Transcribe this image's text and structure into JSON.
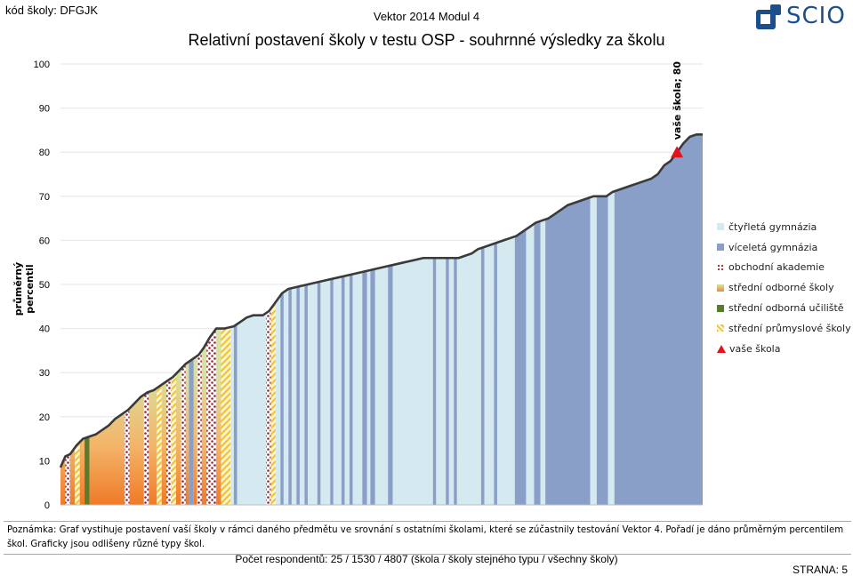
{
  "header": {
    "school_code": "kód školy: DFGJK",
    "module": "Vektor 2014 Modul 4",
    "title": "Relativní postavení školy v testu OSP - souhrnné výsledky za školu",
    "logo_text": "SCIO"
  },
  "chart_data": {
    "type": "area",
    "ylabel": "průměrný percentil",
    "ylim": [
      0,
      100
    ],
    "yticks": [
      0,
      10,
      20,
      30,
      40,
      50,
      60,
      70,
      80,
      90,
      100
    ],
    "legend_position": "right",
    "legend": [
      {
        "key": "ctyr",
        "label": "čtyřletá gymnázia",
        "color": "#d5eaf0"
      },
      {
        "key": "vice",
        "label": "víceletá gymnázia",
        "color": "#8a9fc8"
      },
      {
        "key": "obch",
        "label": "obchodní akademie",
        "color": "#a01d2a",
        "pattern": "dots"
      },
      {
        "key": "sos",
        "label": "střední odborné školy",
        "color": "#f08a3a",
        "gradient_top": "#d6e2a0"
      },
      {
        "key": "sou",
        "label": "střední odborná učiliště",
        "color": "#5a7a2e"
      },
      {
        "key": "prum",
        "label": "střední průmyslové školy",
        "color": "#f1c232",
        "pattern": "stripes"
      },
      {
        "key": "vase",
        "label": "vaše škola",
        "color": "#e0141e",
        "marker": "triangle"
      }
    ],
    "profile": [
      [
        0,
        8.5
      ],
      [
        3,
        11
      ],
      [
        6,
        11.5
      ],
      [
        10,
        13.5
      ],
      [
        14,
        15
      ],
      [
        18,
        15.5
      ],
      [
        22,
        16
      ],
      [
        26,
        17
      ],
      [
        30,
        18
      ],
      [
        34,
        19.5
      ],
      [
        38,
        20.5
      ],
      [
        42,
        21.5
      ],
      [
        46,
        23
      ],
      [
        50,
        24.5
      ],
      [
        54,
        25.5
      ],
      [
        58,
        26
      ],
      [
        62,
        27
      ],
      [
        66,
        28
      ],
      [
        70,
        29
      ],
      [
        74,
        30.5
      ],
      [
        78,
        32
      ],
      [
        82,
        33
      ],
      [
        86,
        34
      ],
      [
        89,
        35.5
      ],
      [
        93,
        38
      ],
      [
        97,
        40
      ],
      [
        102,
        40
      ],
      [
        108,
        40.5
      ],
      [
        112,
        41.5
      ],
      [
        116,
        42.5
      ],
      [
        120,
        43
      ],
      [
        126,
        43
      ],
      [
        130,
        44
      ],
      [
        134,
        46
      ],
      [
        138,
        48
      ],
      [
        142,
        49
      ],
      [
        148,
        49.5
      ],
      [
        154,
        50
      ],
      [
        160,
        50.5
      ],
      [
        166,
        51
      ],
      [
        172,
        51.5
      ],
      [
        178,
        52
      ],
      [
        184,
        52.5
      ],
      [
        190,
        53
      ],
      [
        196,
        53.5
      ],
      [
        202,
        54
      ],
      [
        208,
        54.5
      ],
      [
        214,
        55
      ],
      [
        220,
        55.5
      ],
      [
        226,
        56
      ],
      [
        232,
        56
      ],
      [
        238,
        56
      ],
      [
        244,
        56
      ],
      [
        248,
        56
      ],
      [
        252,
        56.5
      ],
      [
        256,
        57
      ],
      [
        260,
        58
      ],
      [
        264,
        58.5
      ],
      [
        268,
        59
      ],
      [
        272,
        59.5
      ],
      [
        276,
        60
      ],
      [
        280,
        60.5
      ],
      [
        284,
        61
      ],
      [
        288,
        62
      ],
      [
        292,
        63
      ],
      [
        296,
        64
      ],
      [
        300,
        64.5
      ],
      [
        304,
        65
      ],
      [
        308,
        66
      ],
      [
        312,
        67
      ],
      [
        316,
        68
      ],
      [
        320,
        68.5
      ],
      [
        324,
        69
      ],
      [
        328,
        69.5
      ],
      [
        332,
        70
      ],
      [
        336,
        70
      ],
      [
        340,
        70
      ],
      [
        344,
        71
      ],
      [
        348,
        71.5
      ],
      [
        352,
        72
      ],
      [
        356,
        72.5
      ],
      [
        360,
        73
      ],
      [
        364,
        73.5
      ],
      [
        368,
        74
      ],
      [
        372,
        75
      ],
      [
        376,
        77
      ],
      [
        380,
        78
      ],
      [
        384,
        80
      ],
      [
        388,
        82
      ],
      [
        392,
        83.5
      ],
      [
        396,
        84
      ],
      [
        400,
        84
      ]
    ],
    "segments": [
      {
        "from": 0,
        "to": 3,
        "type": "sos"
      },
      {
        "from": 3,
        "to": 6,
        "type": "obch"
      },
      {
        "from": 6,
        "to": 9,
        "type": "sos"
      },
      {
        "from": 9,
        "to": 12,
        "type": "prum"
      },
      {
        "from": 12,
        "to": 15,
        "type": "sos"
      },
      {
        "from": 15,
        "to": 18,
        "type": "sou"
      },
      {
        "from": 18,
        "to": 40,
        "type": "sos"
      },
      {
        "from": 40,
        "to": 43,
        "type": "obch"
      },
      {
        "from": 43,
        "to": 52,
        "type": "sos"
      },
      {
        "from": 52,
        "to": 55,
        "type": "obch"
      },
      {
        "from": 55,
        "to": 60,
        "type": "sos"
      },
      {
        "from": 60,
        "to": 63,
        "type": "prum"
      },
      {
        "from": 63,
        "to": 66,
        "type": "sos"
      },
      {
        "from": 66,
        "to": 69,
        "type": "obch"
      },
      {
        "from": 69,
        "to": 72,
        "type": "prum"
      },
      {
        "from": 72,
        "to": 75,
        "type": "sos"
      },
      {
        "from": 75,
        "to": 78,
        "type": "obch"
      },
      {
        "from": 78,
        "to": 80,
        "type": "sos"
      },
      {
        "from": 80,
        "to": 83,
        "type": "vice"
      },
      {
        "from": 83,
        "to": 85,
        "type": "sos"
      },
      {
        "from": 85,
        "to": 88,
        "type": "obch"
      },
      {
        "from": 88,
        "to": 91,
        "type": "sos"
      },
      {
        "from": 91,
        "to": 94,
        "type": "obch"
      },
      {
        "from": 94,
        "to": 97,
        "type": "obch"
      },
      {
        "from": 97,
        "to": 100,
        "type": "sos"
      },
      {
        "from": 100,
        "to": 106,
        "type": "prum"
      },
      {
        "from": 106,
        "to": 108,
        "type": "ctyr"
      },
      {
        "from": 108,
        "to": 110,
        "type": "vice"
      },
      {
        "from": 110,
        "to": 128,
        "type": "ctyr"
      },
      {
        "from": 128,
        "to": 131,
        "type": "obch"
      },
      {
        "from": 131,
        "to": 134,
        "type": "prum"
      },
      {
        "from": 134,
        "to": 137,
        "type": "ctyr"
      },
      {
        "from": 137,
        "to": 139,
        "type": "vice"
      },
      {
        "from": 139,
        "to": 142,
        "type": "ctyr"
      },
      {
        "from": 142,
        "to": 144,
        "type": "vice"
      },
      {
        "from": 144,
        "to": 147,
        "type": "ctyr"
      },
      {
        "from": 147,
        "to": 149,
        "type": "vice"
      },
      {
        "from": 149,
        "to": 152,
        "type": "ctyr"
      },
      {
        "from": 152,
        "to": 154,
        "type": "vice"
      },
      {
        "from": 154,
        "to": 160,
        "type": "ctyr"
      },
      {
        "from": 160,
        "to": 162,
        "type": "vice"
      },
      {
        "from": 162,
        "to": 168,
        "type": "ctyr"
      },
      {
        "from": 168,
        "to": 170,
        "type": "vice"
      },
      {
        "from": 170,
        "to": 175,
        "type": "ctyr"
      },
      {
        "from": 175,
        "to": 177,
        "type": "vice"
      },
      {
        "from": 177,
        "to": 180,
        "type": "ctyr"
      },
      {
        "from": 180,
        "to": 182,
        "type": "vice"
      },
      {
        "from": 182,
        "to": 188,
        "type": "ctyr"
      },
      {
        "from": 188,
        "to": 191,
        "type": "vice"
      },
      {
        "from": 191,
        "to": 193,
        "type": "ctyr"
      },
      {
        "from": 193,
        "to": 196,
        "type": "vice"
      },
      {
        "from": 196,
        "to": 204,
        "type": "ctyr"
      },
      {
        "from": 204,
        "to": 207,
        "type": "vice"
      },
      {
        "from": 207,
        "to": 232,
        "type": "ctyr"
      },
      {
        "from": 232,
        "to": 234,
        "type": "vice"
      },
      {
        "from": 234,
        "to": 240,
        "type": "ctyr"
      },
      {
        "from": 240,
        "to": 242,
        "type": "vice"
      },
      {
        "from": 242,
        "to": 245,
        "type": "ctyr"
      },
      {
        "from": 245,
        "to": 247,
        "type": "vice"
      },
      {
        "from": 247,
        "to": 262,
        "type": "ctyr"
      },
      {
        "from": 262,
        "to": 264,
        "type": "vice"
      },
      {
        "from": 264,
        "to": 270,
        "type": "ctyr"
      },
      {
        "from": 270,
        "to": 272,
        "type": "vice"
      },
      {
        "from": 272,
        "to": 283,
        "type": "ctyr"
      },
      {
        "from": 283,
        "to": 290,
        "type": "vice"
      },
      {
        "from": 290,
        "to": 295,
        "type": "ctyr"
      },
      {
        "from": 295,
        "to": 299,
        "type": "vice"
      },
      {
        "from": 299,
        "to": 302,
        "type": "ctyr"
      },
      {
        "from": 302,
        "to": 330,
        "type": "vice"
      },
      {
        "from": 330,
        "to": 334,
        "type": "ctyr"
      },
      {
        "from": 334,
        "to": 341,
        "type": "vice"
      },
      {
        "from": 341,
        "to": 345,
        "type": "ctyr"
      },
      {
        "from": 345,
        "to": 400,
        "type": "vice"
      }
    ],
    "school": {
      "x": 384,
      "value": 80,
      "label": "vaše škola; 80"
    }
  },
  "footer": {
    "note": "Poznámka: Graf vystihuje postavení vaší školy v rámci daného předmětu ve srovnání s ostatními školami, které se zúčastnily testování Vektor 4. Pořadí je dáno průměrným percentilem škol. Graficky jsou odlišeny různé typy škol.",
    "respondents": "Počet respondentů: 25 / 1530 / 4807 (škola / školy stejného typu / všechny školy)",
    "page": "STRANA: 5"
  }
}
